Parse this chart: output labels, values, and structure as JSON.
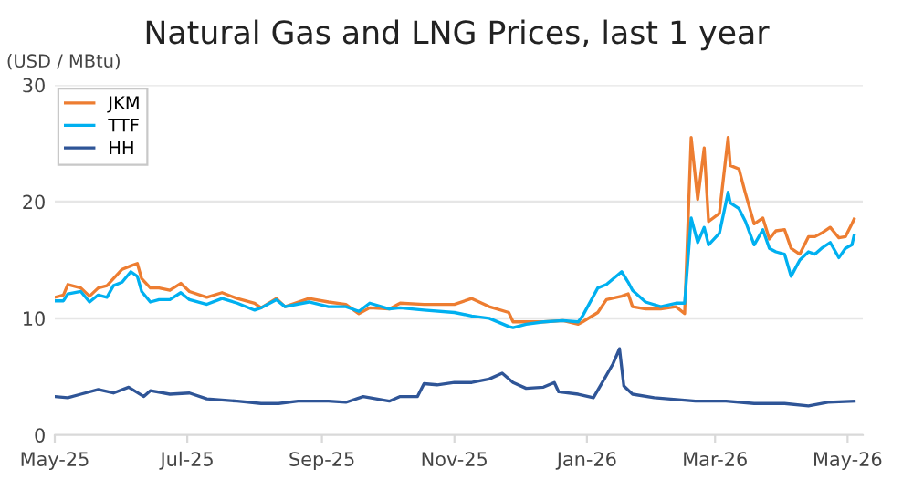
{
  "chart_data": {
    "type": "line",
    "title": "Natural Gas and LNG Prices, last 1 year",
    "ylabel": "(USD / MBtu)",
    "ylim": [
      0,
      30
    ],
    "yticks": [
      0,
      10,
      20,
      30
    ],
    "grid": "y",
    "legend": "top left",
    "marker": "none",
    "line_style": "solid",
    "xlim": [
      "2025-05-01",
      "2026-05-08"
    ],
    "xticks": [
      {
        "value": "2025-05-01",
        "label": "May-25"
      },
      {
        "value": "2025-07-01",
        "label": "Jul-25"
      },
      {
        "value": "2025-09-01",
        "label": "Sep-25"
      },
      {
        "value": "2025-11-01",
        "label": "Nov-25"
      },
      {
        "value": "2026-01-01",
        "label": "Jan-26"
      },
      {
        "value": "2026-03-01",
        "label": "Mar-26"
      },
      {
        "value": "2026-05-01",
        "label": "May-26"
      }
    ],
    "series": [
      {
        "name": "JKM",
        "color": "#ed7d31",
        "x": [
          "2025-05-01",
          "2025-05-05",
          "2025-05-07",
          "2025-05-13",
          "2025-05-17",
          "2025-05-21",
          "2025-05-25",
          "2025-05-28",
          "2025-06-01",
          "2025-06-05",
          "2025-06-08",
          "2025-06-10",
          "2025-06-14",
          "2025-06-18",
          "2025-06-23",
          "2025-06-28",
          "2025-07-02",
          "2025-07-10",
          "2025-07-17",
          "2025-07-24",
          "2025-08-01",
          "2025-08-04",
          "2025-08-11",
          "2025-08-15",
          "2025-08-26",
          "2025-09-04",
          "2025-09-12",
          "2025-09-18",
          "2025-09-23",
          "2025-10-02",
          "2025-10-07",
          "2025-10-18",
          "2025-11-01",
          "2025-11-09",
          "2025-11-17",
          "2025-11-26",
          "2025-11-28",
          "2025-12-04",
          "2025-12-12",
          "2025-12-21",
          "2025-12-28",
          "2025-12-30",
          "2026-01-06",
          "2026-01-10",
          "2026-01-17",
          "2026-01-20",
          "2026-01-22",
          "2026-01-28",
          "2026-02-04",
          "2026-02-11",
          "2026-02-15",
          "2026-02-18",
          "2026-02-21",
          "2026-02-24",
          "2026-02-26",
          "2026-03-03",
          "2026-03-07",
          "2026-03-08",
          "2026-03-12",
          "2026-03-15",
          "2026-03-19",
          "2026-03-23",
          "2026-03-26",
          "2026-03-29",
          "2026-04-02",
          "2026-04-05",
          "2026-04-09",
          "2026-04-13",
          "2026-04-16",
          "2026-04-19",
          "2026-04-23",
          "2026-04-27",
          "2026-04-30",
          "2026-05-03",
          "2026-05-04"
        ],
        "values": [
          11.8,
          12,
          12.9,
          12.6,
          11.9,
          12.6,
          12.8,
          13.4,
          14.2,
          14.5,
          14.7,
          13.4,
          12.6,
          12.6,
          12.4,
          13,
          12.3,
          11.8,
          12.2,
          11.7,
          11.3,
          10.9,
          11.7,
          11,
          11.7,
          11.4,
          11.2,
          10.4,
          10.9,
          10.8,
          11.3,
          11.2,
          11.2,
          11.7,
          11,
          10.5,
          9.7,
          9.7,
          9.7,
          9.8,
          9.5,
          9.7,
          10.5,
          11.6,
          11.9,
          12.1,
          11,
          10.8,
          10.8,
          11,
          10.4,
          25.5,
          20.2,
          24.6,
          18.3,
          19,
          25.5,
          23.1,
          22.8,
          20.7,
          18.1,
          18.6,
          16.8,
          17.5,
          17.6,
          16,
          15.5,
          17,
          17,
          17.3,
          17.8,
          16.9,
          17,
          18.1,
          18.5
        ]
      },
      {
        "name": "TTF",
        "color": "#00b0f0",
        "x": [
          "2025-05-01",
          "2025-05-05",
          "2025-05-07",
          "2025-05-13",
          "2025-05-17",
          "2025-05-21",
          "2025-05-25",
          "2025-05-28",
          "2025-06-01",
          "2025-06-05",
          "2025-06-08",
          "2025-06-10",
          "2025-06-14",
          "2025-06-18",
          "2025-06-23",
          "2025-06-28",
          "2025-07-02",
          "2025-07-10",
          "2025-07-17",
          "2025-07-24",
          "2025-08-01",
          "2025-08-04",
          "2025-08-11",
          "2025-08-15",
          "2025-08-26",
          "2025-09-04",
          "2025-09-12",
          "2025-09-18",
          "2025-09-23",
          "2025-10-02",
          "2025-10-07",
          "2025-10-18",
          "2025-11-01",
          "2025-11-09",
          "2025-11-17",
          "2025-11-26",
          "2025-11-28",
          "2025-12-04",
          "2025-12-12",
          "2025-12-21",
          "2025-12-28",
          "2025-12-30",
          "2026-01-06",
          "2026-01-10",
          "2026-01-17",
          "2026-01-20",
          "2026-01-22",
          "2026-01-28",
          "2026-02-04",
          "2026-02-11",
          "2026-02-15",
          "2026-02-18",
          "2026-02-21",
          "2026-02-24",
          "2026-02-26",
          "2026-03-03",
          "2026-03-07",
          "2026-03-08",
          "2026-03-12",
          "2026-03-15",
          "2026-03-19",
          "2026-03-23",
          "2026-03-26",
          "2026-03-29",
          "2026-04-02",
          "2026-04-05",
          "2026-04-09",
          "2026-04-13",
          "2026-04-16",
          "2026-04-19",
          "2026-04-23",
          "2026-04-27",
          "2026-04-30",
          "2026-05-03",
          "2026-05-04"
        ],
        "values": [
          11.5,
          11.5,
          12.1,
          12.3,
          11.4,
          12,
          11.8,
          12.8,
          13.1,
          14,
          13.6,
          12.3,
          11.4,
          11.6,
          11.6,
          12.2,
          11.6,
          11.2,
          11.7,
          11.3,
          10.7,
          10.9,
          11.6,
          11,
          11.4,
          11,
          11,
          10.6,
          11.3,
          10.8,
          10.9,
          10.7,
          10.5,
          10.2,
          10,
          9.3,
          9.2,
          9.5,
          9.7,
          9.8,
          9.7,
          10.2,
          12.6,
          12.9,
          14,
          13.1,
          12.4,
          11.4,
          11,
          11.3,
          11.3,
          18.6,
          16.5,
          17.8,
          16.3,
          17.3,
          20.8,
          19.9,
          19.4,
          18.3,
          16.3,
          17.6,
          16,
          15.7,
          15.5,
          13.6,
          15,
          15.7,
          15.5,
          16,
          16.5,
          15.2,
          16,
          16.3,
          17.1
        ]
      },
      {
        "name": "HH",
        "color": "#2f5597",
        "x": [
          "2025-05-01",
          "2025-05-07",
          "2025-05-13",
          "2025-05-21",
          "2025-05-28",
          "2025-06-04",
          "2025-06-11",
          "2025-06-14",
          "2025-06-23",
          "2025-07-02",
          "2025-07-10",
          "2025-07-24",
          "2025-08-04",
          "2025-08-12",
          "2025-08-21",
          "2025-09-04",
          "2025-09-12",
          "2025-09-20",
          "2025-10-02",
          "2025-10-07",
          "2025-10-15",
          "2025-10-18",
          "2025-10-24",
          "2025-11-01",
          "2025-11-09",
          "2025-11-17",
          "2025-11-23",
          "2025-11-28",
          "2025-12-04",
          "2025-12-12",
          "2025-12-17",
          "2025-12-19",
          "2025-12-28",
          "2026-01-04",
          "2026-01-09",
          "2026-01-13",
          "2026-01-16",
          "2026-01-18",
          "2026-01-22",
          "2026-02-01",
          "2026-02-20",
          "2026-03-06",
          "2026-03-19",
          "2026-04-02",
          "2026-04-13",
          "2026-04-22",
          "2026-05-04"
        ],
        "values": [
          3.3,
          3.2,
          3.5,
          3.9,
          3.6,
          4.1,
          3.3,
          3.8,
          3.5,
          3.6,
          3.1,
          2.9,
          2.7,
          2.7,
          2.9,
          2.9,
          2.8,
          3.3,
          2.9,
          3.3,
          3.3,
          4.4,
          4.3,
          4.5,
          4.5,
          4.8,
          5.3,
          4.5,
          4,
          4.1,
          4.5,
          3.7,
          3.5,
          3.2,
          4.8,
          6.1,
          7.4,
          4.2,
          3.5,
          3.2,
          2.9,
          2.9,
          2.7,
          2.7,
          2.5,
          2.8,
          2.9
        ]
      }
    ]
  }
}
